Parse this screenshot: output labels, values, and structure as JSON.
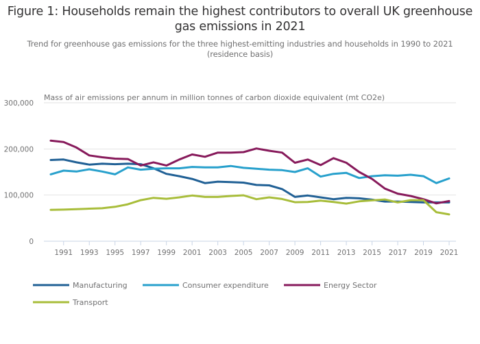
{
  "chart_data": {
    "type": "line",
    "title": "Figure 1: Households remain the highest contributors to overall UK greenhouse gas emissions in 2021",
    "subtitle": "Trend for greenhouse gas emissions for the three highest-emitting industries and households in 1990 to 2021 (residence basis)",
    "ylabel": "Mass of air emissions per annum in million tonnes of carbon dioxide equivalent (mt CO2e)",
    "xlabel": "",
    "ylim": [
      0,
      300000
    ],
    "yticks": [
      0,
      100000,
      200000,
      300000
    ],
    "ytick_labels": [
      "0",
      "100,000",
      "200,000",
      "300,000"
    ],
    "xtick_labels": [
      "1991",
      "1993",
      "1995",
      "1997",
      "1999",
      "2001",
      "2003",
      "2005",
      "2007",
      "2009",
      "2011",
      "2013",
      "2015",
      "2017",
      "2019",
      "2021"
    ],
    "grid": true,
    "legend_position": "bottom-left",
    "x": [
      1990,
      1991,
      1992,
      1993,
      1994,
      1995,
      1996,
      1997,
      1998,
      1999,
      2000,
      2001,
      2002,
      2003,
      2004,
      2005,
      2006,
      2007,
      2008,
      2009,
      2010,
      2011,
      2012,
      2013,
      2014,
      2015,
      2016,
      2017,
      2018,
      2019,
      2020,
      2021
    ],
    "series": [
      {
        "name": "Manufacturing",
        "color": "#206095",
        "values": [
          176000,
          177000,
          171000,
          166000,
          168000,
          167000,
          168000,
          167000,
          158000,
          146000,
          141000,
          135000,
          126000,
          129000,
          128000,
          127000,
          122000,
          121000,
          113000,
          96000,
          99000,
          95000,
          91000,
          94000,
          93000,
          90000,
          86000,
          86000,
          85000,
          84000,
          84000,
          84000
        ]
      },
      {
        "name": "Consumer expenditure",
        "color": "#27a0cc",
        "values": [
          145000,
          153000,
          151000,
          156000,
          151000,
          145000,
          160000,
          155000,
          157000,
          158000,
          158000,
          161000,
          160000,
          160000,
          163000,
          159000,
          157000,
          155000,
          154000,
          150000,
          158000,
          140000,
          146000,
          148000,
          137000,
          141000,
          143000,
          142000,
          144000,
          141000,
          126000,
          136000
        ]
      },
      {
        "name": "Energy Sector",
        "color": "#871a5b",
        "values": [
          218000,
          215000,
          203000,
          186000,
          182000,
          179000,
          178000,
          164000,
          171000,
          164000,
          177000,
          188000,
          183000,
          192000,
          192000,
          193000,
          201000,
          196000,
          192000,
          170000,
          177000,
          165000,
          180000,
          170000,
          150000,
          135000,
          114000,
          103000,
          98000,
          91000,
          82000,
          87000
        ]
      },
      {
        "name": "Transport",
        "color": "#a8bd3a",
        "values": [
          68000,
          68500,
          69500,
          70500,
          71500,
          74500,
          80000,
          89000,
          94000,
          92000,
          95000,
          99000,
          96000,
          96000,
          98000,
          99500,
          91000,
          95000,
          91500,
          84500,
          85000,
          88000,
          85000,
          81500,
          86500,
          88500,
          90500,
          84000,
          89000,
          89000,
          63000,
          58000
        ]
      }
    ]
  }
}
